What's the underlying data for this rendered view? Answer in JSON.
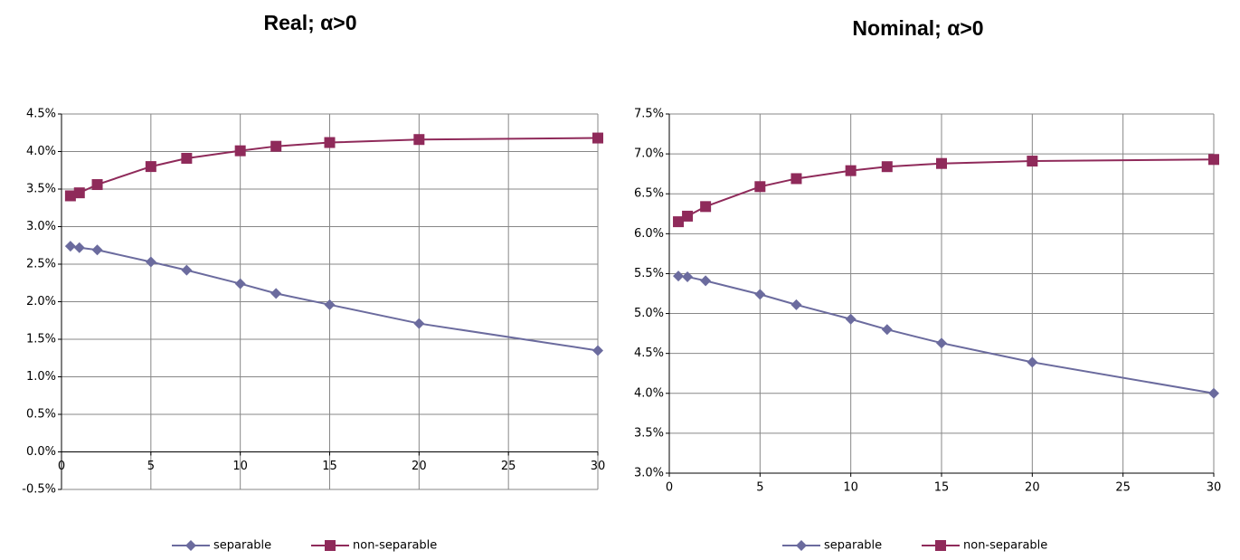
{
  "chart_data": [
    {
      "type": "line",
      "title": "Real; α>0",
      "xlabel": "",
      "ylabel": "",
      "xlim": [
        0,
        30
      ],
      "ylim": [
        -0.5,
        4.5
      ],
      "x_ticks": [
        0,
        5,
        10,
        15,
        20,
        25,
        30
      ],
      "x_tick_labels": [
        "0",
        "5",
        "10",
        "15",
        "20",
        "25",
        "30"
      ],
      "y_ticks": [
        -0.5,
        0,
        0.5,
        1,
        1.5,
        2,
        2.5,
        3,
        3.5,
        4,
        4.5
      ],
      "y_tick_labels": [
        "-0.5%",
        "0.0%",
        "0.5%",
        "1.0%",
        "1.5%",
        "2.0%",
        "2.5%",
        "3.0%",
        "3.5%",
        "4.0%",
        "4.5%"
      ],
      "y_unit": "%",
      "grid": true,
      "legend_position": "bottom",
      "series": [
        {
          "name": "separable",
          "marker": "diamond",
          "color": "#6b6b9e",
          "x": [
            0.5,
            1,
            2,
            5,
            7,
            10,
            12,
            15,
            20,
            30
          ],
          "values": [
            2.74,
            2.72,
            2.69,
            2.53,
            2.42,
            2.24,
            2.11,
            1.96,
            1.71,
            1.35
          ]
        },
        {
          "name": "non-separable",
          "marker": "square",
          "color": "#8f2a5a",
          "x": [
            0.5,
            1,
            2,
            5,
            7,
            10,
            12,
            15,
            20,
            30
          ],
          "values": [
            3.41,
            3.45,
            3.56,
            3.8,
            3.91,
            4.01,
            4.07,
            4.12,
            4.16,
            4.18
          ]
        }
      ]
    },
    {
      "type": "line",
      "title": "Nominal; α>0",
      "xlabel": "",
      "ylabel": "",
      "xlim": [
        0,
        30
      ],
      "ylim": [
        3.0,
        7.5
      ],
      "x_ticks": [
        0,
        5,
        10,
        15,
        20,
        25,
        30
      ],
      "x_tick_labels": [
        "0",
        "5",
        "10",
        "15",
        "20",
        "25",
        "30"
      ],
      "y_ticks": [
        3.0,
        3.5,
        4.0,
        4.5,
        5.0,
        5.5,
        6.0,
        6.5,
        7.0,
        7.5
      ],
      "y_tick_labels": [
        "3.0%",
        "3.5%",
        "4.0%",
        "4.5%",
        "5.0%",
        "5.5%",
        "6.0%",
        "6.5%",
        "7.0%",
        "7.5%"
      ],
      "y_unit": "%",
      "grid": true,
      "legend_position": "bottom",
      "series": [
        {
          "name": "separable",
          "marker": "diamond",
          "color": "#6b6b9e",
          "x": [
            0.5,
            1,
            2,
            5,
            7,
            10,
            12,
            15,
            20,
            30
          ],
          "values": [
            5.47,
            5.46,
            5.41,
            5.24,
            5.11,
            4.93,
            4.8,
            4.63,
            4.39,
            4.0
          ]
        },
        {
          "name": "non-separable",
          "marker": "square",
          "color": "#8f2a5a",
          "x": [
            0.5,
            1,
            2,
            5,
            7,
            10,
            12,
            15,
            20,
            30
          ],
          "values": [
            6.15,
            6.22,
            6.34,
            6.59,
            6.69,
            6.79,
            6.84,
            6.88,
            6.91,
            6.93
          ]
        }
      ]
    }
  ]
}
